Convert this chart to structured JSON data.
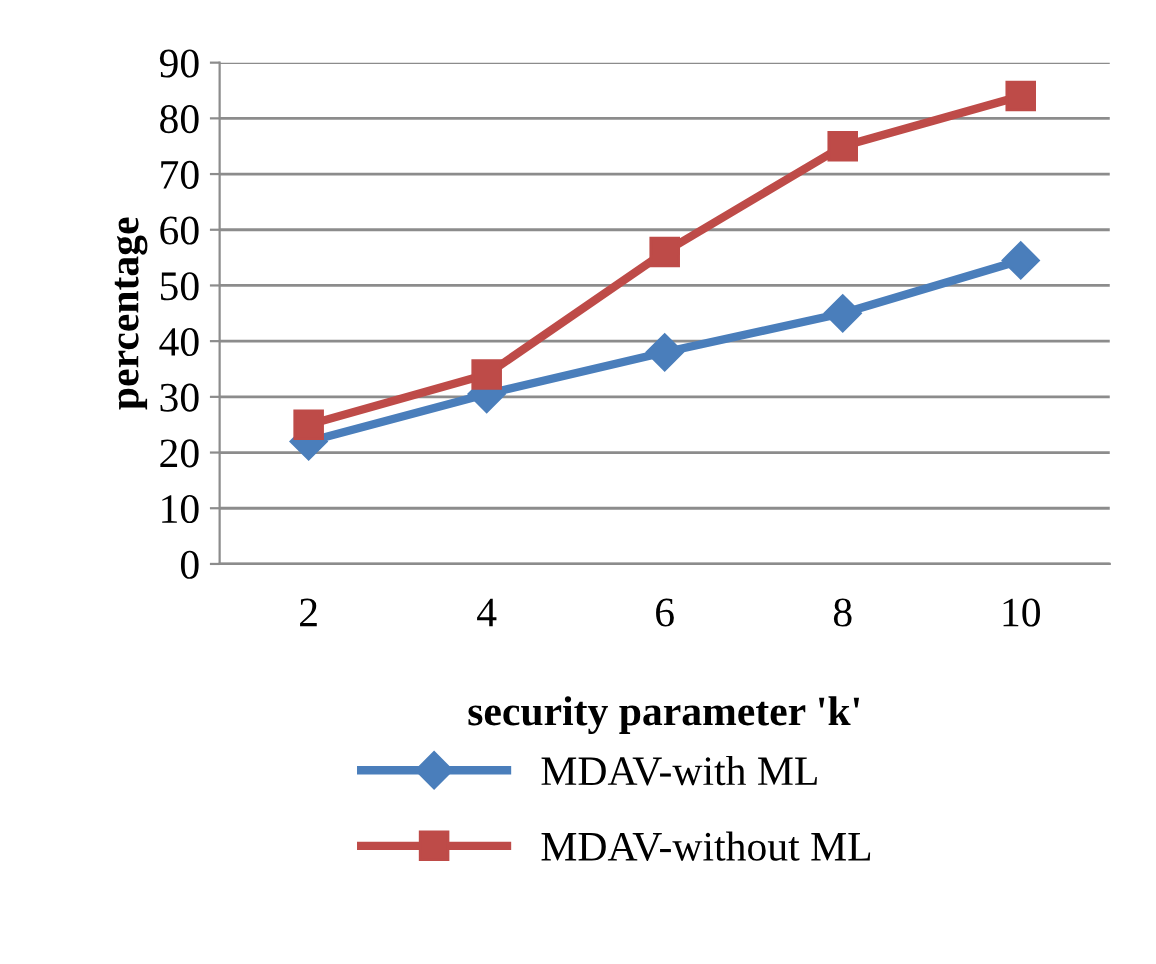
{
  "chart_data": {
    "type": "line",
    "xlabel": "security parameter 'k'",
    "ylabel": "percentage",
    "categories": [
      "2",
      "4",
      "6",
      "8",
      "10"
    ],
    "series": [
      {
        "name": "MDAV-with ML",
        "color": "#4a7ebb",
        "values": [
          22,
          30.5,
          38,
          45,
          54.5
        ],
        "marker": "diamond"
      },
      {
        "name": "MDAV-without ML",
        "color": "#be4b48",
        "values": [
          25,
          34,
          56,
          75,
          84
        ],
        "marker": "square"
      }
    ],
    "ylim": [
      0,
      90
    ],
    "yticks": [
      0,
      10,
      20,
      30,
      40,
      50,
      60,
      70,
      80,
      90
    ],
    "grid": "y",
    "legend": "bottom",
    "line_style": "solid"
  }
}
